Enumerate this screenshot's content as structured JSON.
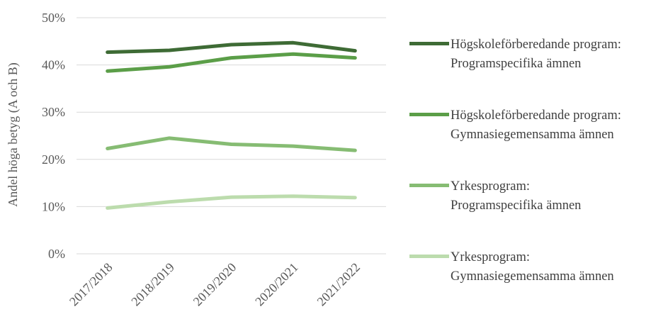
{
  "chart_data": {
    "type": "line",
    "y_label": "Andel höga betyg (A och B)",
    "categories": [
      "2017/2018",
      "2018/2019",
      "2019/2020",
      "2020/2021",
      "2021/2022"
    ],
    "series": [
      {
        "name": "Högskoleförberedande program:\nProgramspecifika ämnen",
        "color": "#3e6b35",
        "values": [
          42.7,
          43.1,
          44.3,
          44.7,
          43.0
        ]
      },
      {
        "name": "Högskoleförberedande program:\nGymnasiegemensamma ämnen",
        "color": "#5b9e48",
        "values": [
          38.7,
          39.6,
          41.5,
          42.3,
          41.5
        ]
      },
      {
        "name": "Yrkesprogram:\nProgramspecifika ämnen",
        "color": "#86bc73",
        "values": [
          22.3,
          24.5,
          23.2,
          22.8,
          21.9
        ]
      },
      {
        "name": "Yrkesprogram:\nGymnasiegemensamma ämnen",
        "color": "#bcdcad",
        "values": [
          9.7,
          11.0,
          12.0,
          12.2,
          11.9
        ]
      }
    ],
    "ylim": [
      0,
      50
    ],
    "yticks": [
      {
        "value": 0,
        "label": "0%"
      },
      {
        "value": 10,
        "label": "10%"
      },
      {
        "value": 20,
        "label": "20%"
      },
      {
        "value": 30,
        "label": "30%"
      },
      {
        "value": 40,
        "label": "40%"
      },
      {
        "value": 50,
        "label": "50%"
      }
    ],
    "grid": true
  }
}
